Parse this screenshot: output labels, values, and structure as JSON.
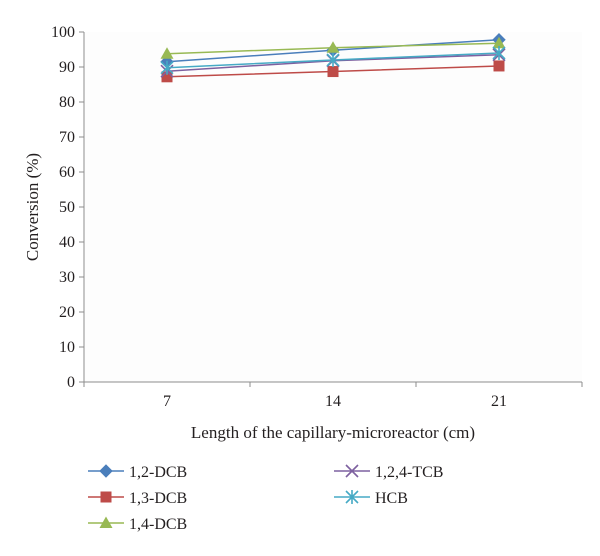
{
  "chart_data": {
    "type": "line",
    "xlabel": "Length of the capillary-microreactor (cm)",
    "ylabel": "Conversion (%)",
    "categories": [
      "7",
      "14",
      "21"
    ],
    "ylim": [
      0,
      100
    ],
    "yticks": [
      "0",
      "10",
      "20",
      "30",
      "40",
      "50",
      "60",
      "70",
      "80",
      "90",
      "100"
    ],
    "grid": false,
    "legend_position": "bottom",
    "series": [
      {
        "name": "1,2-DCB",
        "marker": "diamond",
        "color": "#4a7ebb",
        "values": [
          91.5,
          94.8,
          97.8
        ]
      },
      {
        "name": "1,3-DCB",
        "marker": "square",
        "color": "#be4b48",
        "values": [
          87.2,
          88.7,
          90.3
        ]
      },
      {
        "name": "1,4-DCB",
        "marker": "triangle",
        "color": "#98b954",
        "values": [
          93.8,
          95.5,
          96.8
        ]
      },
      {
        "name": "1,2,4-TCB",
        "marker": "x",
        "color": "#7d60a0",
        "values": [
          88.8,
          91.8,
          93.5
        ]
      },
      {
        "name": "HCB",
        "marker": "star",
        "color": "#46aac5",
        "values": [
          89.8,
          92.0,
          94.0
        ]
      }
    ]
  }
}
